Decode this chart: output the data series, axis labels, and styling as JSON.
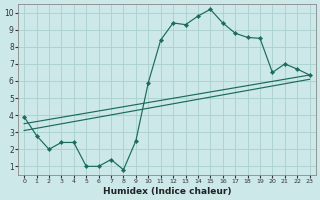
{
  "xlabel": "Humidex (Indice chaleur)",
  "bg_color": "#cce8e8",
  "grid_color": "#aacfcf",
  "line_color": "#1a6b5a",
  "xlim": [
    -0.5,
    23.5
  ],
  "ylim": [
    0.5,
    10.5
  ],
  "xticks": [
    0,
    1,
    2,
    3,
    4,
    5,
    6,
    7,
    8,
    9,
    10,
    11,
    12,
    13,
    14,
    15,
    16,
    17,
    18,
    19,
    20,
    21,
    22,
    23
  ],
  "yticks": [
    1,
    2,
    3,
    4,
    5,
    6,
    7,
    8,
    9,
    10
  ],
  "line1_x": [
    0,
    1,
    2,
    3,
    4,
    5,
    6,
    7,
    8,
    9,
    10,
    11,
    12,
    13,
    14,
    15,
    16,
    17,
    18,
    19,
    20,
    21,
    22,
    23
  ],
  "line1_y": [
    3.9,
    2.8,
    2.0,
    2.4,
    2.4,
    1.0,
    1.0,
    1.4,
    0.8,
    2.5,
    5.9,
    8.4,
    9.4,
    9.3,
    9.8,
    10.2,
    9.4,
    8.8,
    8.55,
    8.5,
    6.5,
    7.0,
    6.7,
    6.35
  ],
  "line2_x": [
    0,
    23
  ],
  "line2_y": [
    3.5,
    6.35
  ],
  "line3_x": [
    0,
    23
  ],
  "line3_y": [
    3.1,
    6.1
  ]
}
